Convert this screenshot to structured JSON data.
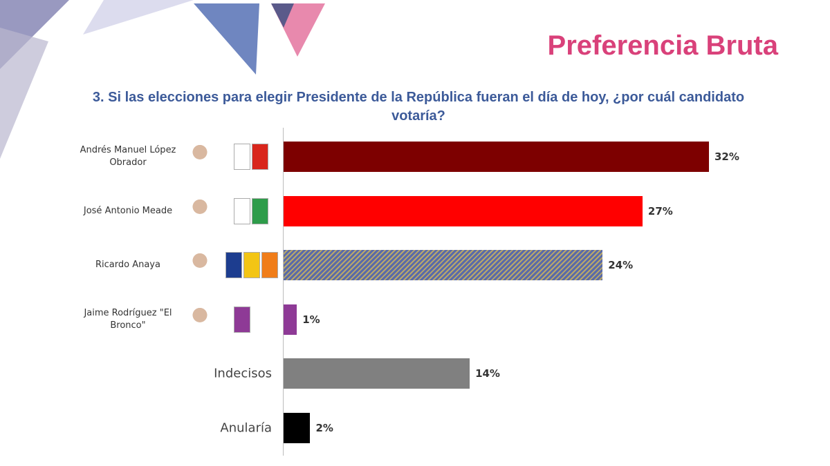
{
  "chart_data": {
    "type": "bar",
    "orientation": "horizontal",
    "title": "Preferencia Bruta",
    "subtitle": "3. Si las elecciones para elegir Presidente de la República fueran el día de hoy, ¿por cuál candidato votaría?",
    "categories": [
      "Andrés Manuel López Obrador",
      "José Antonio Meade",
      "Ricardo Anaya",
      "Jaime Rodríguez \"El Bronco\"",
      "Indecisos",
      "Anularía"
    ],
    "values": [
      32,
      27,
      24,
      1,
      14,
      2
    ],
    "value_labels": [
      "32%",
      "27%",
      "24%",
      "1%",
      "14%",
      "2%"
    ],
    "colors": [
      "#7d0000",
      "#ff0000",
      "#5a6aa8",
      "#8e3a96",
      "#808080",
      "#000000"
    ],
    "hatch": {
      "index": 2,
      "color": "#b9a86a"
    }
  }
}
